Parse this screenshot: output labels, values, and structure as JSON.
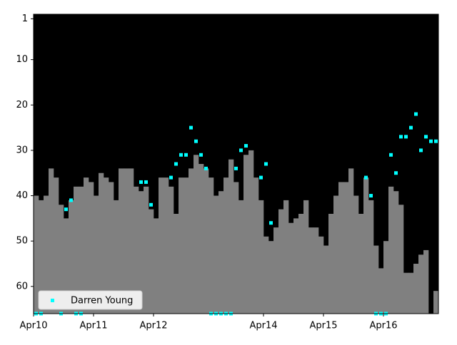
{
  "chart_data": {
    "type": "bar",
    "categories": [
      "Apr10",
      null,
      null,
      null,
      null,
      null,
      null,
      null,
      null,
      null,
      null,
      null,
      "Apr11",
      null,
      null,
      null,
      null,
      null,
      null,
      null,
      null,
      null,
      null,
      null,
      "Apr12",
      null,
      null,
      null,
      null,
      null,
      null,
      null,
      null,
      null,
      null,
      null,
      null,
      null,
      null,
      null,
      null,
      null,
      null,
      null,
      null,
      null,
      "Apr14",
      null,
      null,
      null,
      null,
      null,
      null,
      null,
      null,
      null,
      null,
      null,
      "Apr15",
      null,
      null,
      null,
      null,
      null,
      null,
      null,
      null,
      null,
      null,
      null,
      "Apr16",
      null,
      null,
      null,
      null,
      null,
      null,
      null,
      null,
      null,
      null
    ],
    "values": [
      40,
      41,
      40,
      34,
      36,
      42,
      45,
      41,
      38,
      38,
      36,
      37,
      40,
      35,
      36,
      37,
      41,
      34,
      34,
      34,
      38,
      39,
      38,
      43,
      45,
      36,
      36,
      38,
      44,
      36,
      36,
      34,
      31,
      33,
      34,
      36,
      40,
      39,
      36,
      32,
      37,
      41,
      31,
      30,
      36,
      41,
      49,
      50,
      47,
      43,
      41,
      46,
      45,
      44,
      41,
      47,
      47,
      49,
      51,
      44,
      40,
      37,
      37,
      34,
      40,
      44,
      36,
      41,
      51,
      56,
      50,
      38,
      39,
      42,
      57,
      57,
      55,
      53,
      52,
      null,
      61
    ],
    "color": "#808080",
    "series": [
      {
        "name": "Darren Young",
        "color": "#00ffff",
        "values": [
          66,
          66,
          null,
          null,
          null,
          66,
          43,
          41,
          66,
          66,
          null,
          null,
          null,
          null,
          null,
          null,
          null,
          null,
          null,
          null,
          null,
          37,
          37,
          42,
          null,
          null,
          null,
          36,
          33,
          31,
          31,
          25,
          28,
          31,
          34,
          66,
          66,
          66,
          66,
          66,
          34,
          30,
          29,
          null,
          null,
          36,
          33,
          46,
          null,
          null,
          null,
          null,
          null,
          null,
          null,
          null,
          null,
          null,
          null,
          null,
          null,
          null,
          null,
          null,
          null,
          null,
          36,
          40,
          66,
          66,
          66,
          31,
          35,
          27,
          27,
          25,
          22,
          30,
          27,
          28,
          28
        ]
      }
    ],
    "ylim": [
      66,
      0
    ],
    "yticks": [
      1,
      10,
      20,
      30,
      40,
      50,
      60
    ],
    "legend": "lower left",
    "background": "#000000"
  }
}
